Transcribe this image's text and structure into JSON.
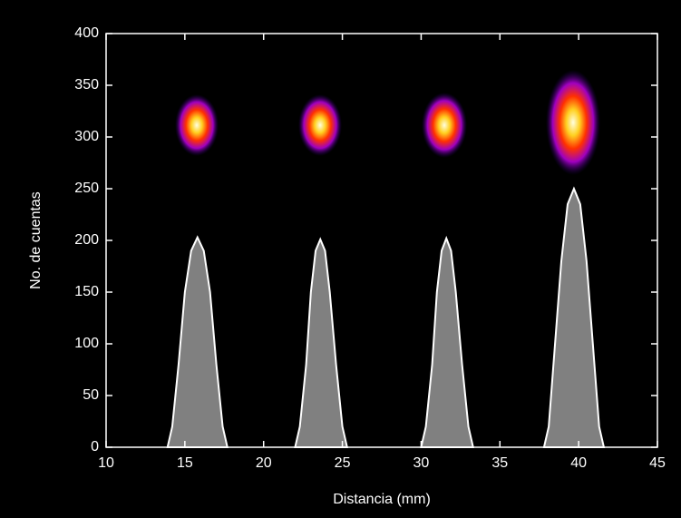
{
  "chart_data": {
    "type": "area",
    "xlabel": "Distancia (mm)",
    "ylabel": "No. de cuentas",
    "x": [
      13.9,
      14.2,
      14.6,
      15.0,
      15.4,
      15.8,
      16.2,
      16.6,
      17.0,
      17.4,
      17.7,
      20,
      22.0,
      22.3,
      22.7,
      23.0,
      23.3,
      23.6,
      23.9,
      24.2,
      24.6,
      25.0,
      25.3,
      27,
      30.0,
      30.3,
      30.7,
      31.0,
      31.3,
      31.6,
      31.9,
      32.2,
      32.6,
      33.0,
      33.3,
      35,
      37.8,
      38.1,
      38.5,
      38.9,
      39.3,
      39.7,
      40.1,
      40.5,
      40.9,
      41.3,
      41.6
    ],
    "series": [
      {
        "color": "#808080",
        "line_color": "#ffffff",
        "values": [
          0,
          20,
          80,
          150,
          190,
          203,
          190,
          150,
          80,
          20,
          0,
          null,
          0,
          20,
          80,
          150,
          190,
          201,
          190,
          150,
          80,
          20,
          0,
          null,
          0,
          20,
          80,
          150,
          190,
          202,
          190,
          150,
          80,
          20,
          0,
          null,
          0,
          20,
          100,
          180,
          235,
          250,
          235,
          180,
          100,
          20,
          0
        ]
      }
    ],
    "xlim": [
      10,
      45
    ],
    "xticks": [
      10,
      15,
      20,
      25,
      30,
      35,
      40,
      45
    ],
    "ylim": [
      0,
      400
    ],
    "yticks": [
      0,
      50,
      100,
      150,
      200,
      250,
      300,
      350,
      400
    ]
  }
}
